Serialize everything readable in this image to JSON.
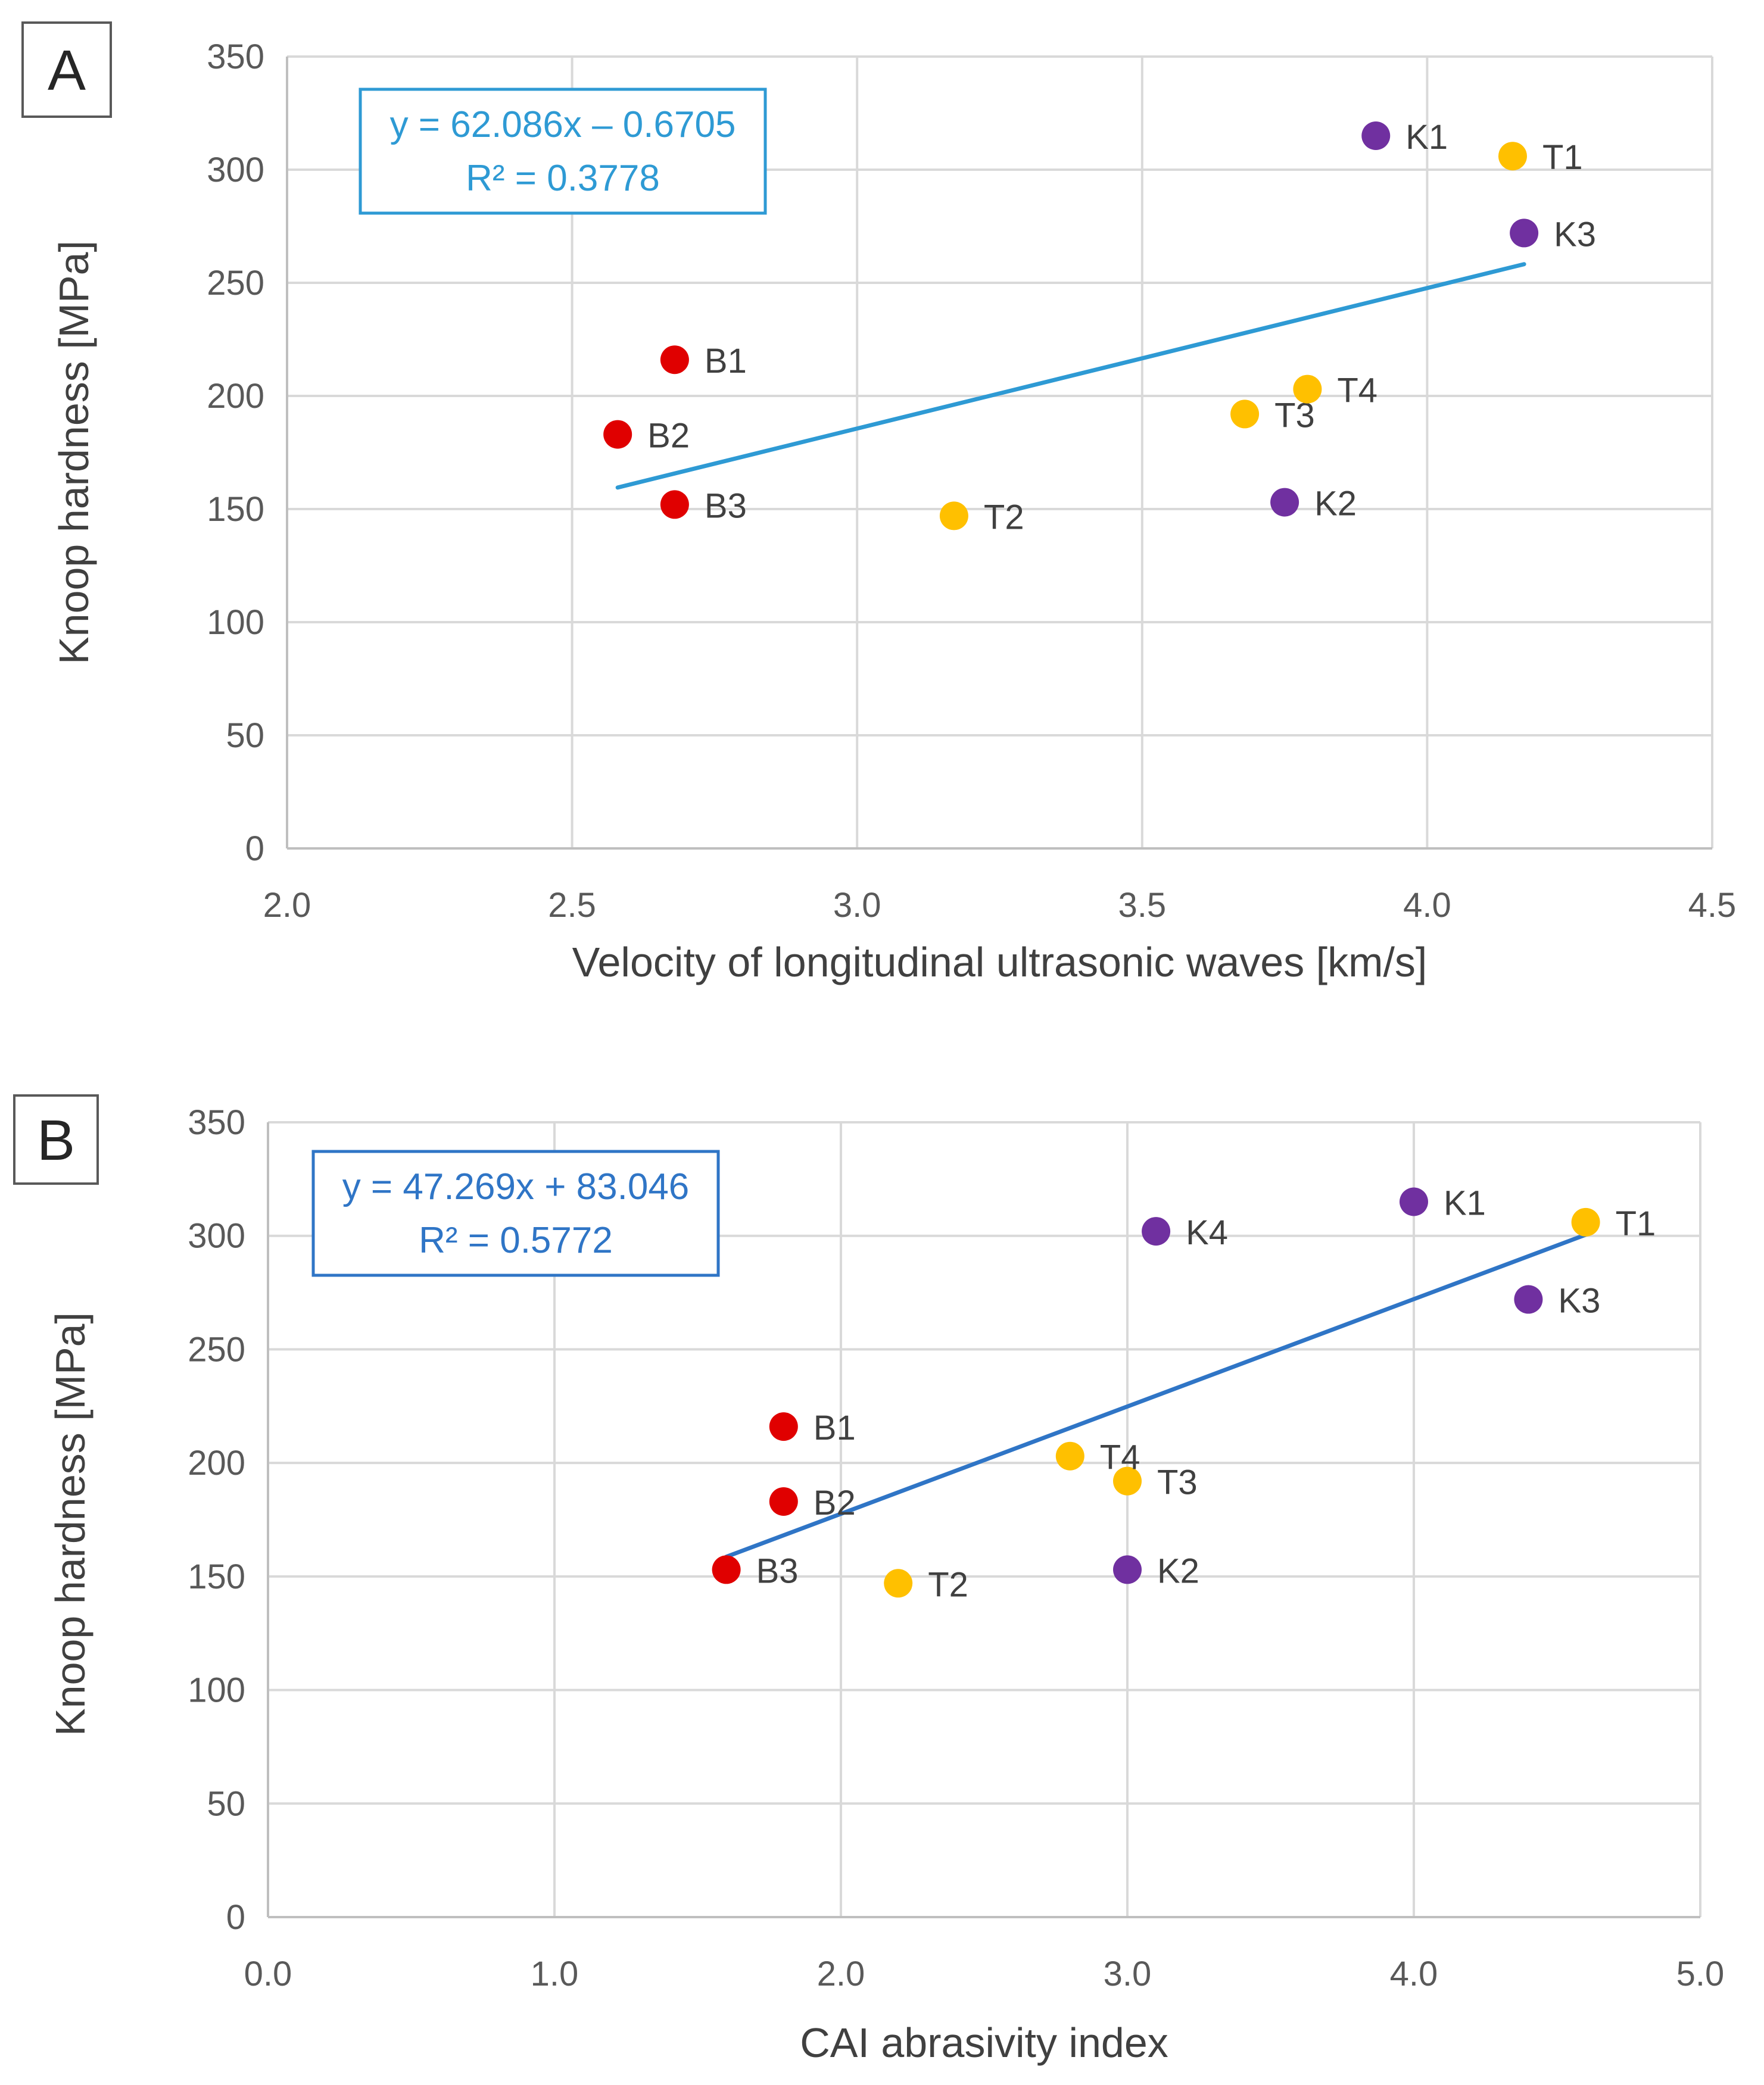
{
  "colors": {
    "B": "#e00000",
    "T": "#ffc000",
    "K": "#7030a0",
    "trendA": "#2e9ad4",
    "trendB": "#2f75c6"
  },
  "chart_data": [
    {
      "type": "scatter",
      "panel": "A",
      "xlabel": "Velocity of longitudinal ultrasonic waves [km/s]",
      "ylabel": "Knoop hardness [MPa]",
      "xlim": [
        2.0,
        4.5
      ],
      "ylim": [
        0,
        350
      ],
      "xticks": [
        2.0,
        2.5,
        3.0,
        3.5,
        4.0,
        4.5
      ],
      "yticks": [
        0,
        50,
        100,
        150,
        200,
        250,
        300,
        350
      ],
      "xdecimals": 1,
      "grid": true,
      "equation": "y = 62.086x – 0.6705",
      "r_squared": "R² = 0.3778",
      "trendline": {
        "slope": 62.086,
        "intercept": -0.6705,
        "x_range": [
          2.58,
          4.17
        ]
      },
      "points": [
        {
          "label": "B1",
          "group": "B",
          "x": 2.68,
          "y": 216
        },
        {
          "label": "B2",
          "group": "B",
          "x": 2.58,
          "y": 183
        },
        {
          "label": "B3",
          "group": "B",
          "x": 2.68,
          "y": 152
        },
        {
          "label": "T1",
          "group": "T",
          "x": 4.15,
          "y": 306
        },
        {
          "label": "T2",
          "group": "T",
          "x": 3.17,
          "y": 147
        },
        {
          "label": "T3",
          "group": "T",
          "x": 3.68,
          "y": 192
        },
        {
          "label": "T4",
          "group": "T",
          "x": 3.79,
          "y": 203
        },
        {
          "label": "K1",
          "group": "K",
          "x": 3.91,
          "y": 315
        },
        {
          "label": "K2",
          "group": "K",
          "x": 3.75,
          "y": 153
        },
        {
          "label": "K3",
          "group": "K",
          "x": 4.17,
          "y": 272
        }
      ]
    },
    {
      "type": "scatter",
      "panel": "B",
      "xlabel": "CAI abrasivity index",
      "ylabel": "Knoop hardness [MPa]",
      "xlim": [
        0.0,
        5.0
      ],
      "ylim": [
        0,
        350
      ],
      "xticks": [
        0.0,
        1.0,
        2.0,
        3.0,
        4.0,
        5.0
      ],
      "yticks": [
        0,
        50,
        100,
        150,
        200,
        250,
        300,
        350
      ],
      "xdecimals": 1,
      "grid": true,
      "equation": "y = 47.269x + 83.046",
      "r_squared": "R² = 0.5772",
      "trendline": {
        "slope": 47.269,
        "intercept": 83.046,
        "x_range": [
          1.6,
          4.6
        ]
      },
      "points": [
        {
          "label": "B1",
          "group": "B",
          "x": 1.8,
          "y": 216
        },
        {
          "label": "B2",
          "group": "B",
          "x": 1.8,
          "y": 183
        },
        {
          "label": "B3",
          "group": "B",
          "x": 1.6,
          "y": 153
        },
        {
          "label": "T1",
          "group": "T",
          "x": 4.6,
          "y": 306
        },
        {
          "label": "T2",
          "group": "T",
          "x": 2.2,
          "y": 147
        },
        {
          "label": "T3",
          "group": "T",
          "x": 3.0,
          "y": 192
        },
        {
          "label": "T4",
          "group": "T",
          "x": 2.8,
          "y": 203
        },
        {
          "label": "K1",
          "group": "K",
          "x": 4.0,
          "y": 315
        },
        {
          "label": "K2",
          "group": "K",
          "x": 3.0,
          "y": 153
        },
        {
          "label": "K3",
          "group": "K",
          "x": 4.4,
          "y": 272
        },
        {
          "label": "K4",
          "group": "K",
          "x": 3.1,
          "y": 302
        }
      ]
    }
  ]
}
